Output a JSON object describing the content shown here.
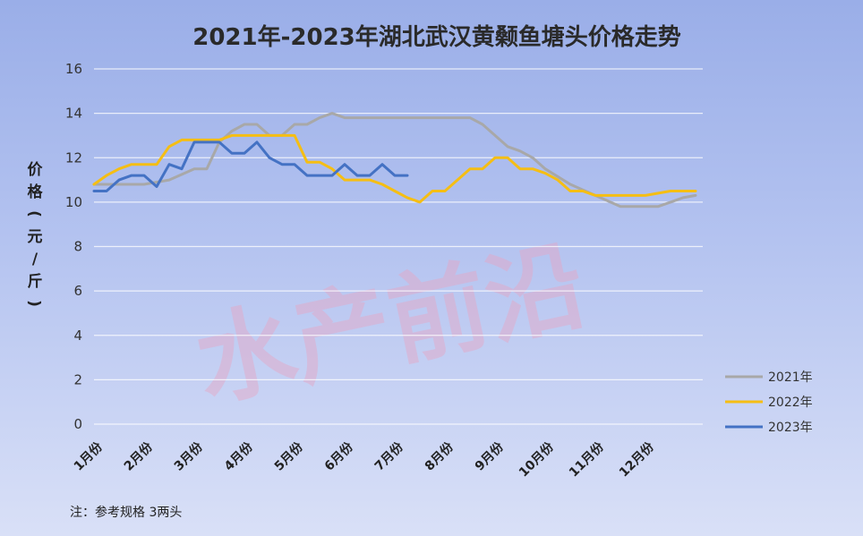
{
  "chart_data": {
    "type": "line",
    "title": "2021年-2023年湖北武汉黄颡鱼塘头价格走势",
    "ylabel": "价格（元/斤）",
    "ylim": [
      0,
      16
    ],
    "yticks": [
      "0",
      "2",
      "4",
      "6",
      "8",
      "10",
      "12",
      "14",
      "16"
    ],
    "categories": [
      "1月份",
      "2月份",
      "3月份",
      "4月份",
      "5月份",
      "6月份",
      "7月份",
      "8月份",
      "9月份",
      "10月份",
      "11月份",
      "12月份"
    ],
    "grid": true,
    "legend_position": "right",
    "note": "注：参考规格  3两头",
    "watermark": "水产前沿",
    "series": [
      {
        "name": "2021年",
        "color": "#a8a8a8",
        "x": [
          0,
          0.5,
          1.0,
          1.5,
          2.0,
          2.25,
          2.5,
          2.75,
          3.0,
          3.25,
          3.5,
          3.75,
          4.0,
          4.25,
          4.5,
          4.75,
          5.0,
          5.25,
          5.5,
          6.0,
          6.5,
          7.0,
          7.5,
          7.75,
          8.0,
          8.25,
          8.5,
          8.75,
          9.0,
          9.5,
          10.0,
          10.5,
          11.0,
          11.25,
          11.5,
          11.75,
          12.0
        ],
        "y": [
          10.8,
          10.8,
          10.8,
          11.0,
          11.5,
          11.5,
          12.7,
          13.2,
          13.5,
          13.5,
          13.0,
          13.0,
          13.5,
          13.5,
          13.8,
          14.0,
          13.8,
          13.8,
          13.8,
          13.8,
          13.8,
          13.8,
          13.8,
          13.5,
          13.0,
          12.5,
          12.3,
          12.0,
          11.5,
          10.8,
          10.3,
          9.8,
          9.8,
          9.8,
          10.0,
          10.2,
          10.3
        ]
      },
      {
        "name": "2022年",
        "color": "#f5be14",
        "x": [
          0,
          0.25,
          0.5,
          0.75,
          1.0,
          1.25,
          1.5,
          1.75,
          2.0,
          2.25,
          2.5,
          2.75,
          3.0,
          3.25,
          3.5,
          3.75,
          4.0,
          4.25,
          4.5,
          4.75,
          5.0,
          5.25,
          5.5,
          5.75,
          6.0,
          6.25,
          6.5,
          6.75,
          7.0,
          7.25,
          7.5,
          7.75,
          8.0,
          8.25,
          8.5,
          8.75,
          9.0,
          9.25,
          9.5,
          9.75,
          10.0,
          10.5,
          11.0,
          11.5,
          12.0
        ],
        "y": [
          10.8,
          11.2,
          11.5,
          11.7,
          11.7,
          11.7,
          12.5,
          12.8,
          12.8,
          12.8,
          12.8,
          13.0,
          13.0,
          13.0,
          13.0,
          13.0,
          13.0,
          11.8,
          11.8,
          11.5,
          11.0,
          11.0,
          11.0,
          10.8,
          10.5,
          10.2,
          10.0,
          10.5,
          10.5,
          11.0,
          11.5,
          11.5,
          12.0,
          12.0,
          11.5,
          11.5,
          11.3,
          11.0,
          10.5,
          10.5,
          10.3,
          10.3,
          10.3,
          10.5,
          10.5
        ]
      },
      {
        "name": "2023年",
        "color": "#4472c4",
        "x": [
          0,
          0.25,
          0.5,
          0.75,
          1.0,
          1.25,
          1.5,
          1.75,
          2.0,
          2.25,
          2.5,
          2.75,
          3.0,
          3.25,
          3.5,
          3.75,
          4.0,
          4.25,
          4.5,
          4.75,
          5.0,
          5.25,
          5.5,
          5.75,
          6.0,
          6.25
        ],
        "y": [
          10.5,
          10.5,
          11.0,
          11.2,
          11.2,
          10.7,
          11.7,
          11.5,
          12.7,
          12.7,
          12.7,
          12.2,
          12.2,
          12.7,
          12.0,
          11.7,
          11.7,
          11.2,
          11.2,
          11.2,
          11.7,
          11.2,
          11.2,
          11.7,
          11.2,
          11.2
        ]
      }
    ]
  }
}
